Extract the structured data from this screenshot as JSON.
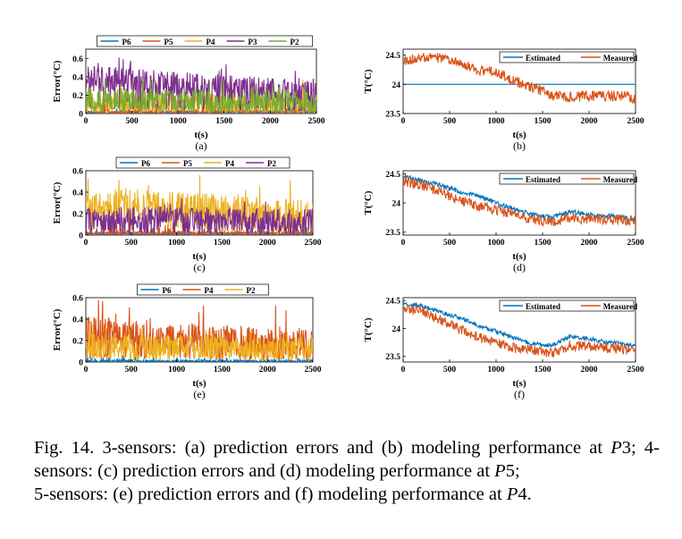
{
  "chart_data": [
    {
      "type": "line",
      "panel_label": "(a)",
      "xlabel": "t(s)",
      "ylabel": "Error(°C)",
      "xlim": [
        0,
        2500
      ],
      "ylim": [
        0,
        0.7
      ],
      "xticks": [
        "0",
        "500",
        "1000",
        "1500",
        "2000",
        "2500"
      ],
      "yticks": [
        "0",
        "0.2",
        "0.4",
        "0.6"
      ],
      "legend_position": "top",
      "series": [
        {
          "name": "P6",
          "color": "#0072BD",
          "level": 0.01,
          "noise": 0.02,
          "decay": 0,
          "burst": 0.03
        },
        {
          "name": "P5",
          "color": "#D95319",
          "level": 0.02,
          "noise": 0.03,
          "decay": 0,
          "burst": 0.06
        },
        {
          "name": "P4",
          "color": "#EDB120",
          "level": 0.1,
          "noise": 0.2,
          "decay": 0.02,
          "burst": 0.1
        },
        {
          "name": "P3",
          "color": "#7E2F8E",
          "level": 0.22,
          "noise": 0.28,
          "decay": 0.08,
          "burst": 0.1
        },
        {
          "name": "P2",
          "color": "#77AC30",
          "level": 0.12,
          "noise": 0.24,
          "decay": 0.02,
          "burst": 0.08
        }
      ]
    },
    {
      "type": "line",
      "panel_label": "(b)",
      "xlabel": "t(s)",
      "ylabel": "T(°C)",
      "xlim": [
        0,
        2500
      ],
      "ylim": [
        23.5,
        24.6
      ],
      "xticks": [
        "0",
        "500",
        "1000",
        "1500",
        "2000",
        "2500"
      ],
      "yticks": [
        "23.5",
        "24",
        "24.5"
      ],
      "legend_position": "top-right",
      "series": [
        {
          "name": "Estimated",
          "color": "#0072BD",
          "x": [
            0,
            2500
          ],
          "y": [
            24.0,
            24.0
          ]
        },
        {
          "name": "Measured",
          "color": "#D95319",
          "x": [
            0,
            200,
            400,
            600,
            800,
            1000,
            1200,
            1400,
            1600,
            1800,
            2000,
            2200,
            2400,
            2500
          ],
          "y": [
            24.4,
            24.45,
            24.45,
            24.35,
            24.25,
            24.2,
            24.05,
            23.95,
            23.8,
            23.78,
            23.8,
            23.8,
            23.8,
            23.75
          ]
        }
      ]
    },
    {
      "type": "line",
      "panel_label": "(c)",
      "xlabel": "t(s)",
      "ylabel": "Error(°C)",
      "xlim": [
        0,
        2500
      ],
      "ylim": [
        0,
        0.6
      ],
      "xticks": [
        "0",
        "500",
        "1000",
        "1500",
        "2000",
        "2500"
      ],
      "yticks": [
        "0",
        "0.2",
        "0.4",
        "0.6"
      ],
      "legend_position": "top",
      "series": [
        {
          "name": "P6",
          "color": "#0072BD",
          "level": 0.01,
          "noise": 0.02,
          "decay": 0,
          "burst": 0.03
        },
        {
          "name": "P5",
          "color": "#D95319",
          "level": 0.02,
          "noise": 0.03,
          "decay": 0,
          "burst": 0.05
        },
        {
          "name": "P4",
          "color": "#EDB120",
          "level": 0.18,
          "noise": 0.3,
          "decay": 0.06,
          "burst": 0.12
        },
        {
          "name": "P2",
          "color": "#7E2F8E",
          "level": 0.14,
          "noise": 0.22,
          "decay": 0.01,
          "burst": 0.06
        }
      ]
    },
    {
      "type": "line",
      "panel_label": "(d)",
      "xlabel": "t(s)",
      "ylabel": "T(°C)",
      "xlim": [
        0,
        2500
      ],
      "ylim": [
        23.45,
        24.55
      ],
      "xticks": [
        "0",
        "500",
        "1000",
        "1500",
        "2000",
        "2500"
      ],
      "yticks": [
        "23.5",
        "24",
        "24.5"
      ],
      "legend_position": "top-right",
      "series": [
        {
          "name": "Estimated",
          "color": "#0072BD",
          "x": [
            0,
            200,
            400,
            600,
            800,
            1000,
            1200,
            1400,
            1600,
            1800,
            2000,
            2200,
            2400,
            2500
          ],
          "y": [
            24.45,
            24.38,
            24.3,
            24.2,
            24.12,
            24.0,
            23.9,
            23.8,
            23.75,
            23.85,
            23.8,
            23.78,
            23.75,
            23.72
          ]
        },
        {
          "name": "Measured",
          "color": "#D95319",
          "x": [
            0,
            200,
            400,
            600,
            800,
            1000,
            1200,
            1400,
            1600,
            1800,
            2000,
            2200,
            2400,
            2500
          ],
          "y": [
            24.38,
            24.3,
            24.2,
            24.05,
            23.95,
            23.88,
            23.8,
            23.72,
            23.68,
            23.75,
            23.72,
            23.72,
            23.7,
            23.68
          ]
        }
      ]
    },
    {
      "type": "line",
      "panel_label": "(e)",
      "xlabel": "t(s)",
      "ylabel": "Error(°C)",
      "xlim": [
        0,
        2500
      ],
      "ylim": [
        0,
        0.6
      ],
      "xticks": [
        "0",
        "500",
        "1000",
        "1500",
        "2000",
        "2500"
      ],
      "yticks": [
        "0",
        "0.2",
        "0.4",
        "0.6"
      ],
      "legend_position": "top",
      "series": [
        {
          "name": "P6",
          "color": "#0072BD",
          "level": 0.01,
          "noise": 0.02,
          "decay": 0,
          "burst": 0.02
        },
        {
          "name": "P4",
          "color": "#D95319",
          "level": 0.16,
          "noise": 0.28,
          "decay": 0.06,
          "burst": 0.12
        },
        {
          "name": "P2",
          "color": "#EDB120",
          "level": 0.12,
          "noise": 0.22,
          "decay": 0.02,
          "burst": 0.06
        }
      ]
    },
    {
      "type": "line",
      "panel_label": "(f)",
      "xlabel": "t(s)",
      "ylabel": "T(°C)",
      "xlim": [
        0,
        2500
      ],
      "ylim": [
        23.4,
        24.55
      ],
      "xticks": [
        "0",
        "500",
        "1000",
        "1500",
        "2000",
        "2500"
      ],
      "yticks": [
        "23.5",
        "24",
        "24.5"
      ],
      "legend_position": "top-right",
      "series": [
        {
          "name": "Estimated",
          "color": "#0072BD",
          "x": [
            0,
            200,
            400,
            600,
            800,
            1000,
            1200,
            1400,
            1600,
            1800,
            2000,
            2200,
            2400,
            2500
          ],
          "y": [
            24.45,
            24.4,
            24.3,
            24.2,
            24.05,
            23.95,
            23.82,
            23.72,
            23.7,
            23.85,
            23.82,
            23.75,
            23.72,
            23.7
          ]
        },
        {
          "name": "Measured",
          "color": "#D95319",
          "x": [
            0,
            200,
            400,
            600,
            800,
            1000,
            1200,
            1400,
            1600,
            1800,
            2000,
            2200,
            2400,
            2500
          ],
          "y": [
            24.38,
            24.3,
            24.15,
            24.0,
            23.85,
            23.75,
            23.65,
            23.6,
            23.55,
            23.7,
            23.68,
            23.65,
            23.62,
            23.6
          ]
        }
      ]
    }
  ],
  "caption": {
    "prefix": "Fig. 14.   3-sensors: (a) prediction errors and (b) modeling performance at ",
    "m1": "P",
    "n1": "3",
    "part2": "; 4-sensors: (c) prediction errors and (d) modeling performance at ",
    "m2": "P",
    "n2": "5",
    "part3": ";\n5-sensors: (e) prediction errors and (f) modeling performance at ",
    "m3": "P",
    "n3": "4",
    "end": "."
  }
}
